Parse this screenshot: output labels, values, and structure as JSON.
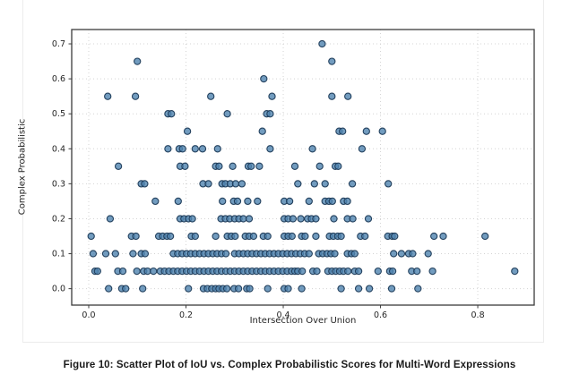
{
  "figure": {
    "caption": "Figure 10: Scatter Plot of IoU vs. Complex Probabilistic Scores for Multi-Word Expressions"
  },
  "chart_data": {
    "type": "scatter",
    "title": "",
    "xlabel": "Intersection Over Union",
    "ylabel": "Complex Probabilistic",
    "xlim": [
      -0.035,
      0.916
    ],
    "ylim": [
      -0.047,
      0.741
    ],
    "x_ticks": [
      0.0,
      0.2,
      0.4,
      0.6,
      0.8
    ],
    "y_ticks": [
      0.0,
      0.1,
      0.2,
      0.3,
      0.4,
      0.5,
      0.6,
      0.7
    ],
    "grid": true,
    "legend": "none",
    "marker": {
      "fill": "#4f83af",
      "edge": "#1c3a57",
      "radius": 3.6,
      "opacity": 0.8
    },
    "bands": [
      {
        "y": 0.7,
        "x": [
          0.48
        ]
      },
      {
        "y": 0.65,
        "x": [
          0.1,
          0.5
        ]
      },
      {
        "y": 0.6,
        "x": [
          0.36
        ]
      },
      {
        "y": 0.55,
        "x": [
          0.039,
          0.096,
          0.251,
          0.377,
          0.5,
          0.533
        ]
      },
      {
        "y": 0.5,
        "x": [
          0.163,
          0.17,
          0.285,
          0.366,
          0.373
        ]
      },
      {
        "y": 0.45,
        "x": [
          0.203,
          0.357,
          0.515,
          0.522,
          0.571,
          0.604
        ]
      },
      {
        "y": 0.4,
        "x": [
          0.163,
          0.186,
          0.193,
          0.219,
          0.234,
          0.265,
          0.373,
          0.46,
          0.562
        ]
      },
      {
        "y": 0.35,
        "x": [
          0.061,
          0.188,
          0.198,
          0.261,
          0.268,
          0.296,
          0.328,
          0.334,
          0.351,
          0.424,
          0.475,
          0.507,
          0.513
        ]
      },
      {
        "y": 0.3,
        "x": [
          0.108,
          0.115,
          0.235,
          0.246,
          0.274,
          0.281,
          0.291,
          0.302,
          0.315,
          0.43,
          0.464,
          0.486,
          0.542,
          0.616
        ]
      },
      {
        "y": 0.25,
        "x": [
          0.137,
          0.184,
          0.275,
          0.298,
          0.306,
          0.327,
          0.347,
          0.402,
          0.413,
          0.453,
          0.486,
          0.494,
          0.501,
          0.524,
          0.532
        ]
      },
      {
        "y": 0.2,
        "x": [
          0.044,
          0.188,
          0.196,
          0.205,
          0.213,
          0.272,
          0.281,
          0.29,
          0.3,
          0.309,
          0.318,
          0.33,
          0.402,
          0.41,
          0.42,
          0.436,
          0.45,
          0.458,
          0.467,
          0.504,
          0.532,
          0.543,
          0.575
        ]
      },
      {
        "y": 0.15,
        "x": [
          0.005,
          0.088,
          0.097,
          0.144,
          0.152,
          0.161,
          0.168,
          0.211,
          0.219,
          0.261,
          0.285,
          0.293,
          0.301,
          0.322,
          0.33,
          0.339,
          0.359,
          0.368,
          0.402,
          0.41,
          0.418,
          0.438,
          0.445,
          0.467,
          0.495,
          0.503,
          0.512,
          0.519,
          0.559,
          0.568,
          0.615,
          0.624,
          0.629,
          0.71,
          0.729,
          0.815
        ]
      },
      {
        "y": 0.1,
        "x": [
          0.009,
          0.035,
          0.055,
          0.091,
          0.108,
          0.116,
          0.174,
          0.183,
          0.192,
          0.201,
          0.21,
          0.219,
          0.228,
          0.237,
          0.246,
          0.255,
          0.264,
          0.273,
          0.282,
          0.3,
          0.309,
          0.318,
          0.327,
          0.336,
          0.345,
          0.354,
          0.363,
          0.372,
          0.381,
          0.39,
          0.399,
          0.408,
          0.417,
          0.426,
          0.435,
          0.444,
          0.453,
          0.473,
          0.481,
          0.49,
          0.498,
          0.506,
          0.532,
          0.54,
          0.547,
          0.627,
          0.643,
          0.658,
          0.666,
          0.698
        ]
      },
      {
        "y": 0.05,
        "x": [
          0.013,
          0.018,
          0.06,
          0.07,
          0.099,
          0.113,
          0.121,
          0.133,
          0.147,
          0.156,
          0.165,
          0.174,
          0.183,
          0.192,
          0.201,
          0.21,
          0.219,
          0.228,
          0.237,
          0.246,
          0.255,
          0.264,
          0.273,
          0.282,
          0.291,
          0.3,
          0.309,
          0.318,
          0.327,
          0.336,
          0.345,
          0.354,
          0.363,
          0.372,
          0.381,
          0.39,
          0.399,
          0.408,
          0.417,
          0.424,
          0.43,
          0.439,
          0.461,
          0.469,
          0.492,
          0.5,
          0.508,
          0.516,
          0.524,
          0.533,
          0.547,
          0.555,
          0.595,
          0.619,
          0.625,
          0.664,
          0.675,
          0.707,
          0.876
        ]
      },
      {
        "y": 0.0,
        "x": [
          0.041,
          0.068,
          0.076,
          0.111,
          0.205,
          0.236,
          0.244,
          0.253,
          0.261,
          0.268,
          0.276,
          0.284,
          0.299,
          0.308,
          0.325,
          0.331,
          0.368,
          0.402,
          0.41,
          0.438,
          0.519,
          0.555,
          0.577,
          0.623,
          0.677
        ]
      }
    ]
  }
}
